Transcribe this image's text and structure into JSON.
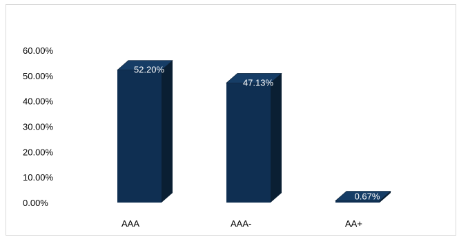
{
  "chart_data": {
    "type": "bar",
    "categories": [
      "AAA",
      "AAA-",
      "AA+"
    ],
    "values": [
      52.2,
      47.13,
      0.67
    ],
    "data_labels": [
      "52.20%",
      "47.13%",
      "0.67%"
    ],
    "yticks": [
      "0.00%",
      "10.00%",
      "20.00%",
      "30.00%",
      "40.00%",
      "50.00%",
      "60.00%"
    ],
    "ylim": [
      0,
      60
    ],
    "grid": false,
    "legend": "none",
    "style": "3d-column",
    "colors": {
      "front": "#0f2f52",
      "side": "#0a1f33",
      "top": "#163d66",
      "label": "#ffffff"
    }
  }
}
